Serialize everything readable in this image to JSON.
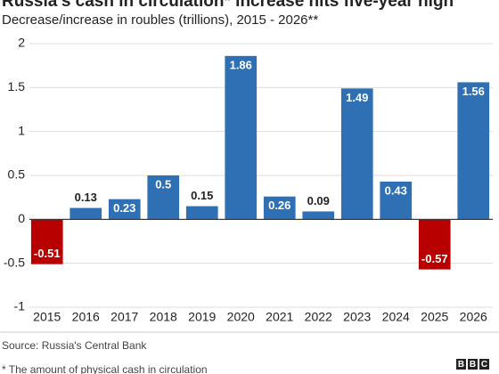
{
  "chart_data": {
    "type": "bar",
    "title": "Russia's cash in circulation* increase hits five-year high",
    "subtitle": "Decrease/increase in roubles (trillions), 2015 - 2026**",
    "categories": [
      "2015",
      "2016",
      "2017",
      "2018",
      "2019",
      "2020",
      "2021",
      "2022",
      "2023",
      "2024",
      "2025",
      "2026"
    ],
    "values": [
      -0.51,
      0.13,
      0.23,
      0.5,
      0.15,
      1.86,
      0.26,
      0.09,
      1.49,
      0.43,
      -0.57,
      1.56
    ],
    "color": "#2f6fb3",
    "negative_color": "#b80000",
    "ylim": [
      -1,
      2
    ],
    "yticks": [
      -1,
      -0.5,
      0,
      0.5,
      1,
      1.5,
      2
    ],
    "grid": true,
    "source": "Source: Russia's Central Bank",
    "footnote": "* The amount of physical cash in circulation",
    "logo": "BBC"
  }
}
